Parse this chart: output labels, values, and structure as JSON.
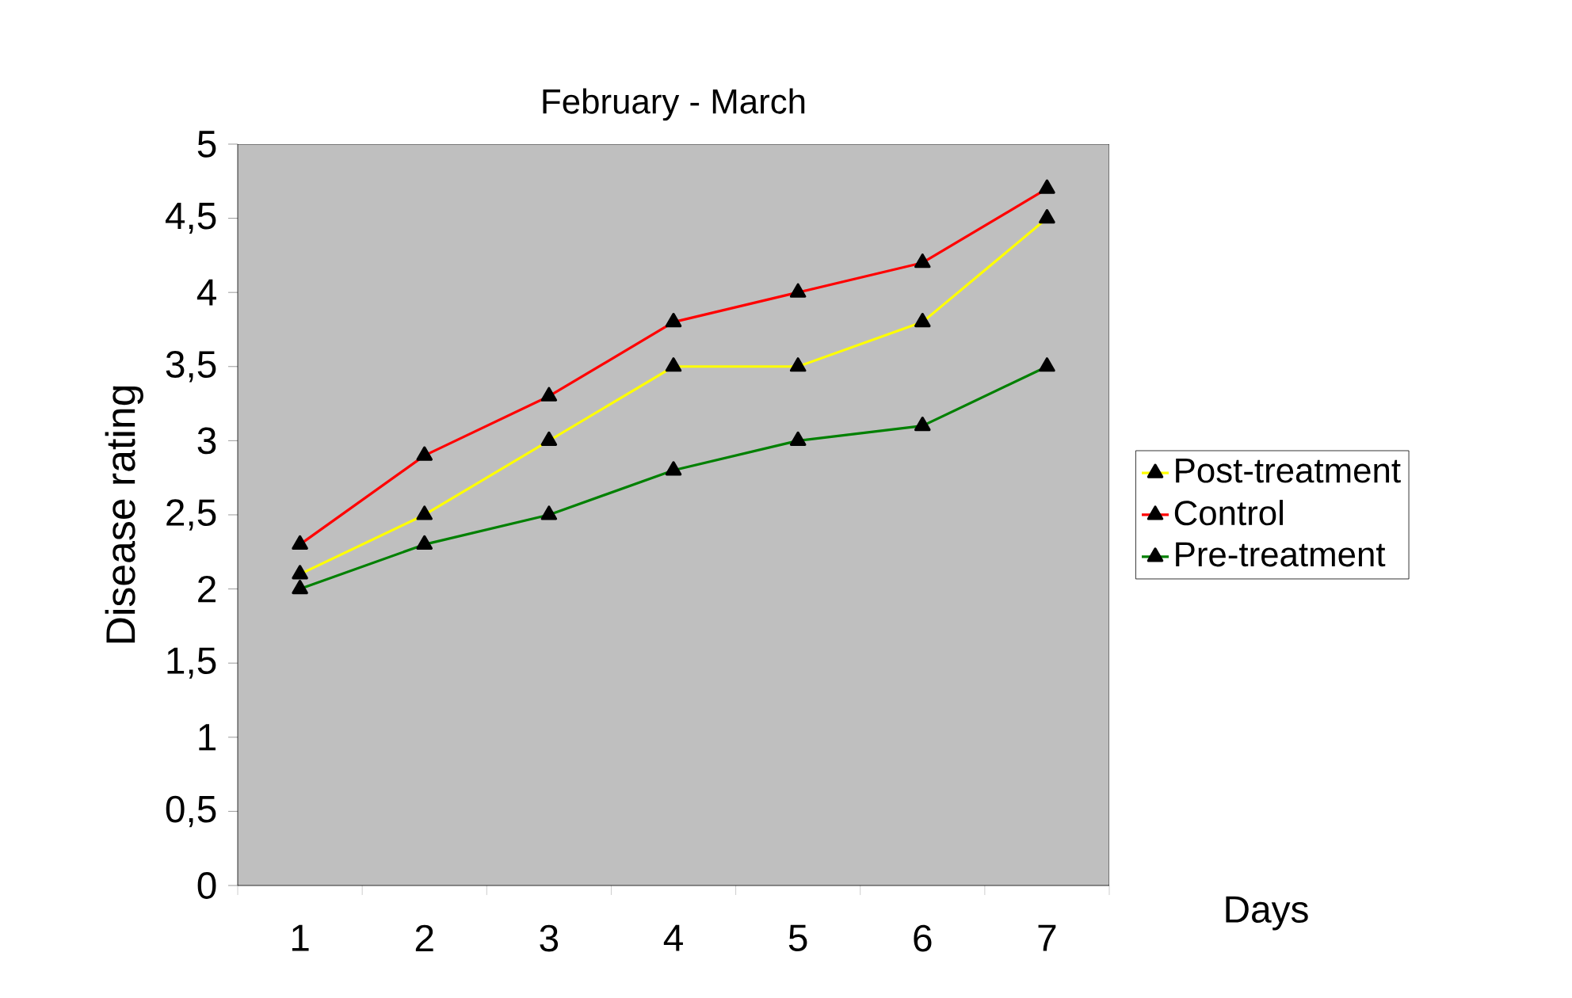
{
  "chart_data": {
    "type": "line",
    "title": "February - March",
    "xlabel": "Days",
    "ylabel": "Disease rating",
    "categories": [
      "1",
      "2",
      "3",
      "4",
      "5",
      "6",
      "7"
    ],
    "series": [
      {
        "name": "Post-treatment",
        "color": "#ffff00",
        "values": [
          2.1,
          2.5,
          3.0,
          3.5,
          3.5,
          3.8,
          4.5
        ]
      },
      {
        "name": "Control",
        "color": "#ff0000",
        "values": [
          2.3,
          2.9,
          3.3,
          3.8,
          4.0,
          4.2,
          4.7
        ]
      },
      {
        "name": "Pre-treatment",
        "color": "#008000",
        "values": [
          2.0,
          2.3,
          2.5,
          2.8,
          3.0,
          3.1,
          3.5
        ]
      }
    ],
    "ylim": [
      0,
      5
    ],
    "yticks": [
      0,
      {
        "value": 0.5,
        "label": "0,5"
      },
      1,
      {
        "value": 1.5,
        "label": "1,5"
      },
      2,
      {
        "value": 2.5,
        "label": "2,5"
      },
      3,
      {
        "value": 3.5,
        "label": "3,5"
      },
      4,
      {
        "value": 4.5,
        "label": "4,5"
      },
      5
    ],
    "legend": "right",
    "marker": "triangle",
    "line_style": "solid",
    "grid": false
  }
}
